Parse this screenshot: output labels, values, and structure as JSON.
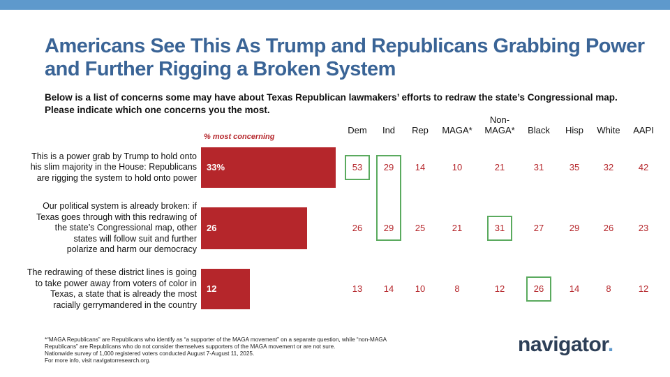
{
  "title_lines": [
    "Americans See This As Trump and Republicans Grabbing Power",
    "and Further Rigging a Broken System"
  ],
  "subtitle_lines": [
    "Below is a list of concerns some may have about Texas Republican lawmakers’ efforts to redraw the state’s Congressional map.",
    "Please indicate which one concerns you the most."
  ],
  "colors": {
    "bar": "#b5262b",
    "title": "#3a6496",
    "highlight": "#5aaa5e",
    "topbar": "#5e99cc"
  },
  "chart_data": {
    "type": "bar",
    "orientation": "horizontal",
    "measure_label": "% most concerning",
    "categories": [
      "This is a power grab by Trump to hold onto his slim majority in the House: Republicans are rigging the system to hold onto power",
      "Our political system is already broken: if Texas goes through with this redrawing of the state’s Congressional map, other states will follow suit and further polarize and harm our democracy",
      "The redrawing of these district lines is going to take power away from voters of color in Texas, a state that is already the most racially gerrymandered in the country"
    ],
    "category_lines": [
      [
        "This is a power grab by Trump to hold onto",
        "his slim majority in the House: Republicans",
        "are rigging the system to hold onto power"
      ],
      [
        "Our political system is already broken: if",
        "Texas goes through with this redrawing of",
        "the state’s Congressional map, other",
        "states will follow suit and further",
        "polarize and harm our democracy"
      ],
      [
        "The redrawing of these district lines is going",
        "to take power away from voters of color in",
        "Texas, a state that is already the most",
        "racially gerrymandered in the country"
      ]
    ],
    "values": [
      33,
      26,
      12
    ],
    "value_labels": [
      "33%",
      "26",
      "12"
    ],
    "xlim": [
      0,
      33
    ],
    "table": {
      "columns": [
        "Dem",
        "Ind",
        "Rep",
        "MAGA*",
        "Non-MAGA*",
        "Black",
        "Hisp",
        "White",
        "AAPI"
      ],
      "column_header_lines": [
        [
          "Dem"
        ],
        [
          "Ind"
        ],
        [
          "Rep"
        ],
        [
          "MAGA*"
        ],
        [
          "Non-",
          "MAGA*"
        ],
        [
          "Black"
        ],
        [
          "Hisp"
        ],
        [
          "White"
        ],
        [
          "AAPI"
        ]
      ],
      "rows": [
        [
          53,
          29,
          14,
          10,
          21,
          31,
          35,
          32,
          42
        ],
        [
          26,
          29,
          25,
          21,
          31,
          27,
          29,
          26,
          23
        ],
        [
          13,
          14,
          10,
          8,
          12,
          26,
          14,
          8,
          12
        ]
      ],
      "highlights": [
        {
          "col": "Dem",
          "rows": [
            0
          ]
        },
        {
          "col": "Ind",
          "rows": [
            0,
            1
          ]
        },
        {
          "col": "Non-MAGA*",
          "rows": [
            1
          ]
        },
        {
          "col": "Black",
          "rows": [
            2
          ]
        }
      ]
    }
  },
  "footnote_lines": [
    "*“MAGA Republicans” are Republicans who identify as “a supporter of the MAGA movement” on a separate question, while “non-MAGA",
    "Republicans” are Republicans who do not consider themselves supporters of the MAGA movement or are not sure.",
    "Nationwide survey of 1,000 registered voters conducted August 7-August 11, 2025.",
    "For more info, visit navigatorresearch.org."
  ],
  "logo": {
    "text": "navigator",
    "dot": "."
  }
}
